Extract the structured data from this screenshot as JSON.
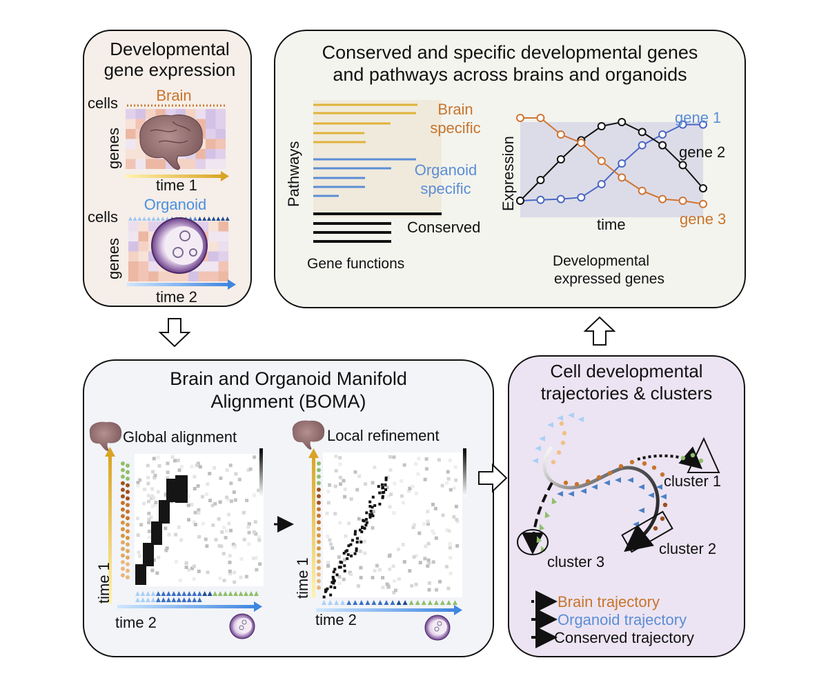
{
  "colors": {
    "brain": "#c8742c",
    "organoid": "#5b8dd6",
    "conserved": "#111111",
    "gold": "#e0b23a",
    "green": "#8fbf6a",
    "panel_expr_bg": "#f6eee8",
    "panel_top_bg": "#f3f4ee",
    "panel_boma_bg": "#f2f4f8",
    "panel_traj_bg": "#ece4f2"
  },
  "panel_expression": {
    "title_line1": "Developmental",
    "title_line2": "gene expression",
    "brain": {
      "cells": "cells",
      "label": "Brain",
      "genes": "genes",
      "time": "time 1"
    },
    "organoid": {
      "cells": "cells",
      "label": "Organoid",
      "genes": "genes",
      "time": "time 2"
    }
  },
  "panel_conserved": {
    "title_line1": "Conserved and specific developmental genes",
    "title_line2": "and pathways across brains and organoids",
    "bars": {
      "ylabel": "Pathways",
      "brain_line1": "Brain",
      "brain_line2": "specific",
      "organoid_line1": "Organoid",
      "organoid_line2": "specific",
      "conserved": "Conserved",
      "caption": "Gene functions"
    },
    "expression": {
      "ylabel": "Expression",
      "xlabel": "time",
      "gene1": "gene 1",
      "gene2": "gene 2",
      "gene3": "gene 3",
      "caption_line1": "Developmental",
      "caption_line2": "expressed genes"
    }
  },
  "chart_data": {
    "type": "line",
    "x": [
      1,
      2,
      3,
      4,
      5,
      6,
      7,
      8,
      9,
      10
    ],
    "series": [
      {
        "name": "gene 1",
        "values": [
          0.05,
          0.06,
          0.07,
          0.09,
          0.25,
          0.5,
          0.72,
          0.85,
          0.97,
          0.97
        ]
      },
      {
        "name": "gene 2",
        "values": [
          0.05,
          0.3,
          0.55,
          0.78,
          0.95,
          1.0,
          0.88,
          0.72,
          0.48,
          0.2
        ]
      },
      {
        "name": "gene 3",
        "values": [
          1.05,
          1.05,
          0.85,
          0.75,
          0.53,
          0.33,
          0.17,
          0.07,
          0.05,
          0.01
        ]
      }
    ],
    "xlabel": "time",
    "ylabel": "Expression"
  },
  "panel_boma": {
    "title_line1": "Brain and Organoid Manifold",
    "title_line2": "Alignment (BOMA)",
    "global_label": "Global alignment",
    "local_label": "Local refinement",
    "time1": "time 1",
    "time2": "time 2"
  },
  "panel_trajectory": {
    "title_line1": "Cell developmental",
    "title_line2": "trajectories & clusters",
    "cluster1": "cluster 1",
    "cluster2": "cluster 2",
    "cluster3": "cluster 3",
    "legend_brain": "Brain trajectory",
    "legend_organoid": "Organoid trajectory",
    "legend_conserved": "Conserved trajectory"
  }
}
